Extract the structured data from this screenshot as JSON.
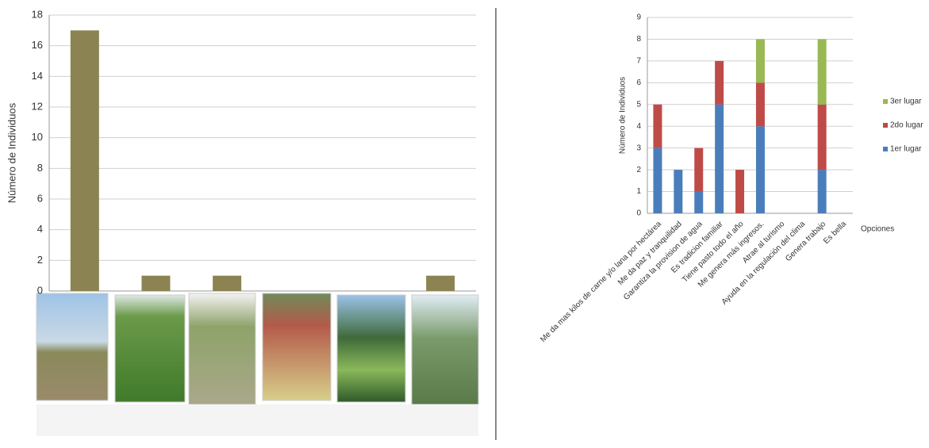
{
  "chart_data": [
    {
      "type": "bar",
      "ylabel": "Número de Individuos",
      "categories": [
        null,
        null,
        null,
        null,
        null,
        null
      ],
      "values": [
        17,
        1,
        1,
        0,
        0,
        1
      ],
      "color": "#8b8352",
      "ylim": [
        0,
        18
      ],
      "yticks": [
        0,
        2,
        4,
        6,
        8,
        10,
        12,
        14,
        16,
        18
      ],
      "grid": true
    },
    {
      "type": "stacked_bar",
      "ylabel": "Número de Individuos",
      "xlabel": "Opciones",
      "categories": [
        "Me da mas kilos de carne y/o lana por hectárea",
        "Me da paz y tranquilidad",
        "Garantiza la provision de agua",
        "Es tradicion familiar",
        "Tiene pasto todo el año",
        "Me genera más ingresos.",
        "Atrae al turismo",
        "Ayuda en la regulación del clima",
        "Genera trabajo",
        "Es bella"
      ],
      "series": [
        {
          "name": "1er lugar",
          "color": "#4a7ebb",
          "values": [
            3,
            2,
            1,
            5,
            0,
            4,
            0,
            0,
            2,
            0
          ]
        },
        {
          "name": "2do lugar",
          "color": "#be4b48",
          "values": [
            2,
            0,
            2,
            2,
            2,
            2,
            0,
            0,
            3,
            0
          ]
        },
        {
          "name": "3er lugar",
          "color": "#98b954",
          "values": [
            0,
            0,
            0,
            0,
            0,
            2,
            0,
            0,
            3,
            0
          ]
        }
      ],
      "ylim": [
        0,
        9
      ],
      "yticks": [
        0,
        1,
        2,
        3,
        4,
        5,
        6,
        7,
        8,
        9
      ],
      "grid": true,
      "legend": "right"
    }
  ]
}
